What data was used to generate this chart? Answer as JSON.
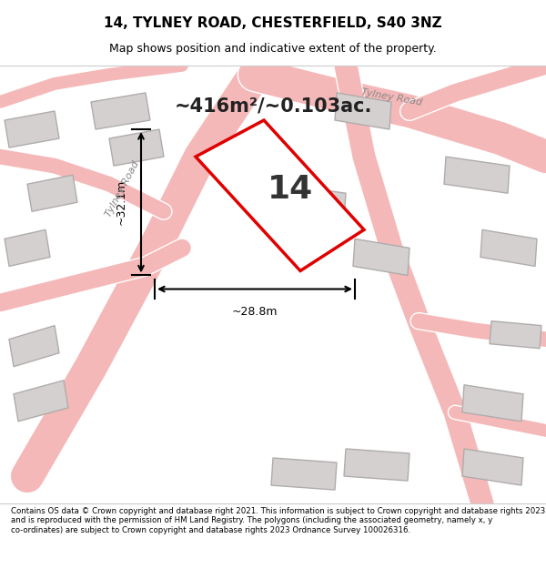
{
  "title_line1": "14, TYLNEY ROAD, CHESTERFIELD, S40 3NZ",
  "title_line2": "Map shows position and indicative extent of the property.",
  "area_text": "~416m²/~0.103ac.",
  "property_number": "14",
  "dim_vertical": "~32.1m",
  "dim_horizontal": "~28.8m",
  "footer_text": "Contains OS data © Crown copyright and database right 2021. This information is subject to Crown copyright and database rights 2023 and is reproduced with the permission of HM Land Registry. The polygons (including the associated geometry, namely x, y co-ordinates) are subject to Crown copyright and database rights 2023 Ordnance Survey 100026316.",
  "bg_color": "#f0eeee",
  "map_bg": "#e8e4e4",
  "road_color": "#f5b8b8",
  "building_color": "#d4d0d0",
  "building_edge": "#b0acac",
  "property_fill": "white",
  "property_edge": "#e00000",
  "road_label": "Tylney Road",
  "footer_bg": "white",
  "title_bg": "white"
}
